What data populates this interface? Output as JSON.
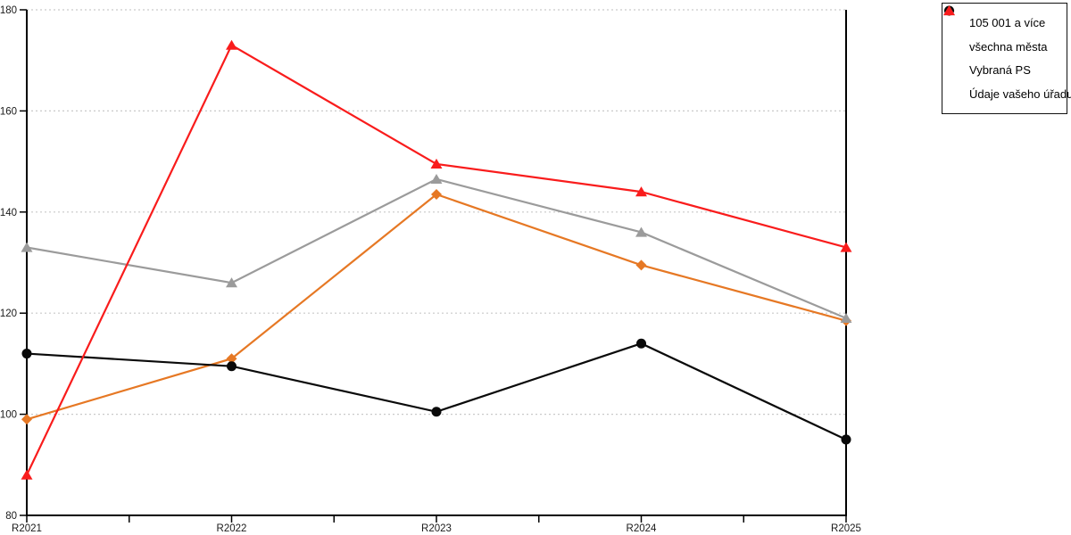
{
  "chart_data": {
    "type": "line",
    "title": "",
    "xlabel": "",
    "ylabel": "",
    "categories": [
      "R2021",
      "R2022",
      "R2023",
      "R2024",
      "R2025"
    ],
    "series": [
      {
        "name": "105 001 a více",
        "marker": "diamond",
        "color": "#E67824",
        "values": [
          99,
          111,
          143.5,
          129.5,
          118.5
        ]
      },
      {
        "name": "všechna města",
        "marker": "circle",
        "color": "#0A0A0A",
        "values": [
          112,
          109.5,
          100.5,
          114,
          95
        ]
      },
      {
        "name": "Vybraná PS",
        "marker": "triangle",
        "color": "#9B9B9B",
        "values": [
          133,
          126,
          146.5,
          136,
          119
        ]
      },
      {
        "name": "Údaje vašeho úřadu",
        "marker": "triangle",
        "color": "#F91C1C",
        "values": [
          88,
          173,
          149.5,
          144,
          133
        ]
      }
    ],
    "ylim": [
      80,
      180
    ],
    "yticks": [
      80,
      100,
      120,
      140,
      160,
      180
    ],
    "grid": "horizontal dotted",
    "legend_position": "top-right"
  },
  "colors": {
    "background": "#FFFFFF",
    "axis": "#000000",
    "gridline": "#C9C9C9",
    "tick_label": "#1A1A1A",
    "legend_border": "#111111"
  }
}
